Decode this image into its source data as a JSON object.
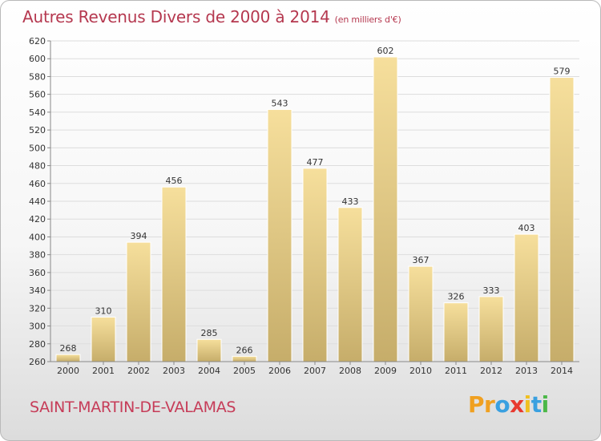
{
  "title": "Autres Revenus Divers de 2000 à 2014",
  "unit": "(en milliers d'€)",
  "commune": "SAINT-MARTIN-DE-VALAMAS",
  "logo": {
    "letters": [
      "P",
      "r",
      "o",
      "x",
      "i",
      "t",
      "i"
    ],
    "colors": [
      "#f0a020",
      "#f0a020",
      "#3aa0e0",
      "#e8392f",
      "#f0c020",
      "#3aa0e0",
      "#4cb848"
    ]
  },
  "colors": {
    "bar_top": "#f6df9c",
    "bar_bottom": "#c6ad6a",
    "grid": "#dddddd",
    "axis": "#888888"
  },
  "chart_data": {
    "type": "bar",
    "categories": [
      "2000",
      "2001",
      "2002",
      "2003",
      "2004",
      "2005",
      "2006",
      "2007",
      "2008",
      "2009",
      "2010",
      "2011",
      "2012",
      "2013",
      "2014"
    ],
    "values": [
      268,
      310,
      394,
      456,
      285,
      266,
      543,
      477,
      433,
      602,
      367,
      326,
      333,
      403,
      579
    ],
    "ylim": [
      260,
      620
    ],
    "yticks": [
      260,
      280,
      300,
      320,
      340,
      360,
      380,
      400,
      420,
      440,
      460,
      480,
      500,
      520,
      540,
      560,
      580,
      600,
      620
    ],
    "grid": true
  }
}
